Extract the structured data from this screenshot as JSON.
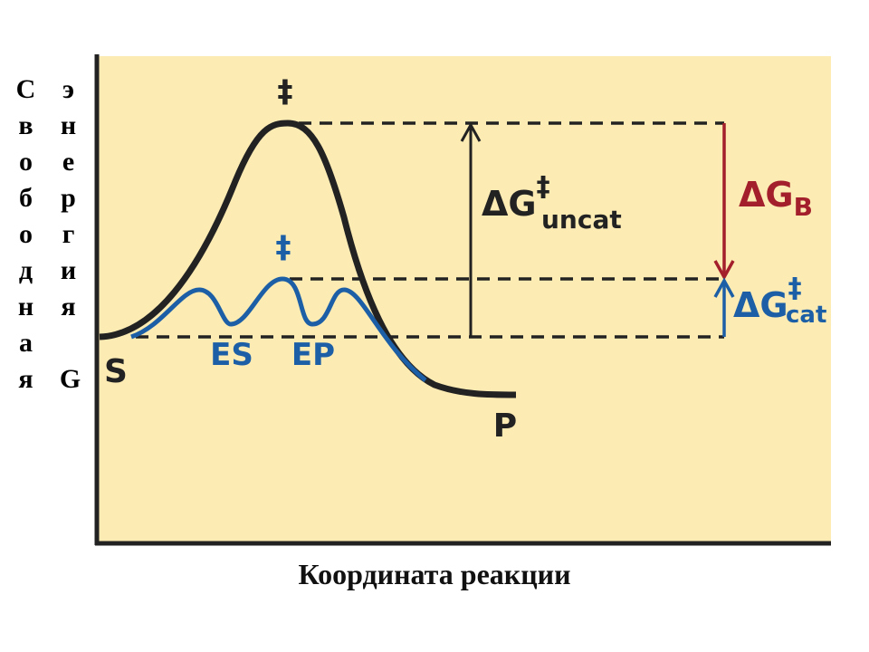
{
  "diagram": {
    "y_label": {
      "column_1": "Свободная",
      "column_2": "энергия",
      "symbol": "G"
    },
    "x_label": "Координата реакции",
    "uncat_peak_mark": "‡",
    "cat_peak_mark": "‡",
    "intermediates": [
      "ES",
      "EP"
    ],
    "substrate": "S",
    "product": "P",
    "dg_uncat": {
      "main": "ΔG",
      "sup": "‡",
      "sub": "uncat"
    },
    "dg_b": {
      "main": "ΔG",
      "sub": "B"
    },
    "dg_cat": {
      "main": "ΔG",
      "sup": "‡",
      "sub": "cat"
    }
  }
}
